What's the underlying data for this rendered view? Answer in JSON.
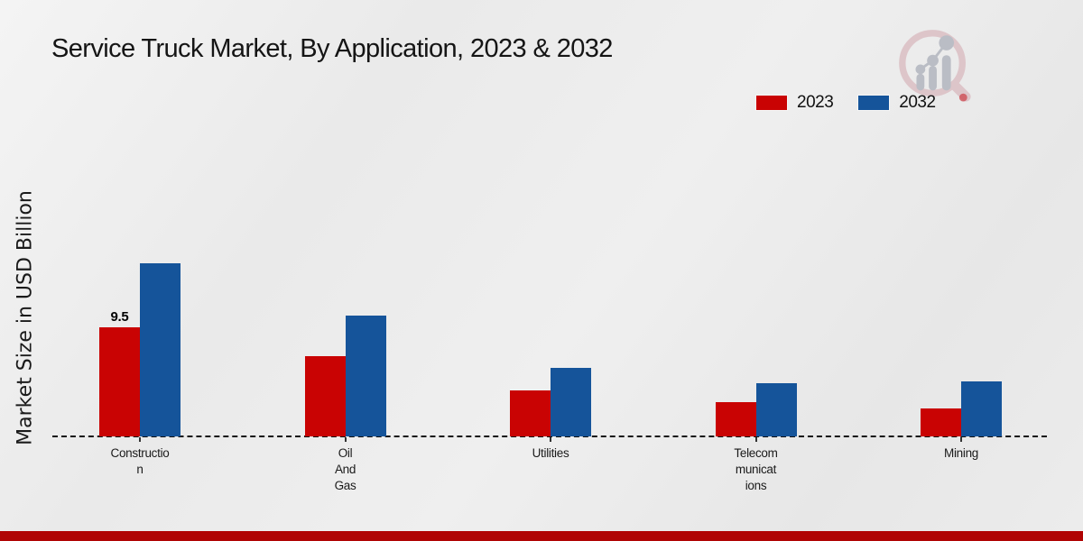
{
  "title": "Service Truck Market, By Application, 2023 & 2032",
  "y_axis_label": "Market Size in USD Billion",
  "legend": [
    {
      "label": "2023",
      "color": "#c90303"
    },
    {
      "label": "2032",
      "color": "#15549a"
    }
  ],
  "colors": {
    "series_2023": "#c90303",
    "series_2032": "#15549a",
    "footer_bar": "#b00404",
    "baseline": "#111111"
  },
  "logo": {
    "name": "market-research-magnifier-logo"
  },
  "chart_data": {
    "type": "bar",
    "categories": [
      "Construction",
      "Oil And Gas",
      "Utilities",
      "Telecommunications",
      "Mining"
    ],
    "category_label_lines": [
      "Constructio\nn",
      "Oil\nAnd\nGas",
      "Utilities",
      "Telecom\nmunicat\nions",
      "Mining"
    ],
    "series": [
      {
        "name": "2023",
        "color": "#c90303",
        "values": [
          9.5,
          7.0,
          4.0,
          3.0,
          2.4
        ]
      },
      {
        "name": "2032",
        "color": "#15549a",
        "values": [
          15.1,
          10.5,
          6.0,
          4.6,
          4.8
        ]
      }
    ],
    "data_labels": [
      {
        "series": "2023",
        "category": "Construction",
        "text": "9.5"
      }
    ],
    "title": "Service Truck Market, By Application, 2023 & 2032",
    "xlabel": "",
    "ylabel": "Market Size in USD Billion",
    "ylim": [
      0,
      16
    ],
    "grid": false,
    "y_ticks_visible": false,
    "baseline_style": "dashed",
    "legend_position": "top-right"
  }
}
